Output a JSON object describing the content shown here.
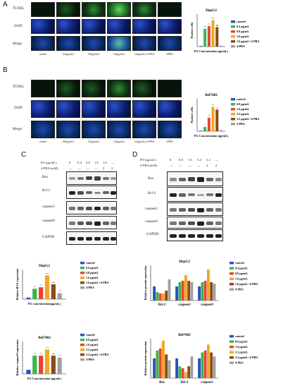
{
  "panelA": {
    "letter": "A",
    "row_labels": [
      "TUNEL",
      "DAPI",
      "Merge"
    ],
    "col_labels": [
      "control",
      "0.4(μg/mL)",
      "0.8(μg/mL)",
      "1.6(μg/mL)",
      "1.6(μg/mL)+4-PBA",
      "4-PBA"
    ]
  },
  "panelB": {
    "letter": "B",
    "row_labels": [
      "TUNEL",
      "DAPI",
      "Merge"
    ],
    "col_labels": [
      "control",
      "0.8(μg/mL)",
      "1.6(μg/mL)",
      "3.2(μg/mL)",
      "3.2(μg/mL)+4-PBA",
      "4-PBA"
    ]
  },
  "panelC": {
    "letter": "C",
    "header_po": "PO (μg/mL)",
    "header_pba": "4-PBA (mM)",
    "po_values": [
      "0",
      "0.4",
      "0.8",
      "1.6",
      "1.6",
      "—"
    ],
    "pba_values": [
      "—",
      "—",
      "—",
      "—",
      "2",
      "2"
    ],
    "blots": [
      "Bax",
      "Bcl-2",
      "caspase3",
      "caspase9",
      "GAPDH"
    ]
  },
  "panelD": {
    "letter": "D",
    "header_po": "PO (μg/mL)",
    "header_pba": "4-PBA (mM)",
    "po_values": [
      "0",
      "0.8",
      "1.6",
      "3.2",
      "3.2",
      "—"
    ],
    "pba_values": [
      "—",
      "—",
      "—",
      "—",
      "2",
      "2"
    ],
    "blots": [
      "Bax",
      "Bcl-2",
      "caspase3",
      "caspase9",
      "GAPDH"
    ]
  },
  "colors": {
    "control": "#2b4fbf",
    "c2": "#3cb54a",
    "c3": "#e8442d",
    "c4": "#f2a623",
    "c5": "#8b4a1c",
    "c6": "#a0a0a0"
  },
  "chart_data": [
    {
      "type": "bar",
      "title": "HepG2",
      "xlabel": "PG Concentration (μg/mL)",
      "ylabel": "Positive cells",
      "categories": [
        "control",
        "0.4 μg/mL",
        "0.8 μg/mL",
        "1.6 μg/mL",
        "1.6 μg/mL+4-PBA",
        "4-PBA"
      ],
      "values": [
        2,
        55,
        63,
        82,
        60,
        3
      ],
      "ylim": [
        0,
        100
      ],
      "legend": [
        "control",
        "0.4 μg/mL",
        "0.8 μg/mL",
        "1.6 μg/mL",
        "1.6 μg/mL+4-PBA",
        "4-PBA"
      ],
      "legend_position": "right",
      "annotations": [
        "**",
        "**",
        "***",
        "##",
        ""
      ]
    },
    {
      "type": "bar",
      "title": "Bel7402",
      "xlabel": "PG Concentration (μg/mL)",
      "ylabel": "Positive cells",
      "categories": [
        "control",
        "0.8 μg/mL",
        "1.6 μg/mL",
        "3.2 μg/mL",
        "3.2 μg/mL+4-PBA",
        "4-PBA"
      ],
      "values": [
        1,
        8,
        25,
        45,
        40,
        2
      ],
      "ylim": [
        0,
        60
      ],
      "legend": [
        "control",
        "0.8 μg/mL",
        "1.6 μg/mL",
        "3.2 μg/mL",
        "3.2 μg/mL+4-PBA",
        "4-PBA"
      ],
      "legend_position": "right",
      "annotations": [
        "*",
        "**",
        "**",
        "#",
        ""
      ]
    },
    {
      "type": "bar",
      "title": "HepG2",
      "xlabel": "PG concentration(μg/mL)",
      "ylabel": "Relative BAX expression",
      "categories": [
        "control",
        "0.4 μg/mL",
        "0.8 μg/mL",
        "1.6 μg/mL",
        "1.6 μg/mL+4-PBA",
        "4-PBA"
      ],
      "values": [
        1.0,
        7.0,
        8.0,
        16.0,
        10.0,
        4.0
      ],
      "ylim": [
        0,
        20
      ],
      "legend": [
        "control",
        "0.4 μg/mL",
        "0.8 μg/mL",
        "1.6 μg/mL",
        "1.6 μg/mL+4-PBA",
        "4-PBA"
      ],
      "legend_position": "right",
      "annotations": [
        "**",
        "**",
        "***",
        "##",
        "**"
      ]
    },
    {
      "type": "bar",
      "title": "HepG2",
      "xlabel": "",
      "ylabel": "Relative protein expression",
      "categories": [
        "Bcl-2",
        "caspase3",
        "caspase9"
      ],
      "series": [
        {
          "name": "control",
          "values": [
            1.0,
            1.0,
            1.0
          ]
        },
        {
          "name": "0.4 μg/mL",
          "values": [
            0.6,
            1.3,
            1.3
          ]
        },
        {
          "name": "0.8 μg/mL",
          "values": [
            0.5,
            1.4,
            1.4
          ]
        },
        {
          "name": "1.6 μg/mL",
          "values": [
            0.5,
            1.8,
            2.2
          ]
        },
        {
          "name": "1.6 μg/mL+4-PBA",
          "values": [
            0.7,
            1.4,
            1.3
          ]
        },
        {
          "name": "4-PBA",
          "values": [
            1.5,
            1.3,
            1.2
          ]
        }
      ],
      "ylim": [
        0,
        2.5
      ],
      "legend_position": "right"
    },
    {
      "type": "bar",
      "title": "Bel7402",
      "xlabel": "PG Concentration (μg/mL)",
      "ylabel": "Relative caspase9 expression",
      "categories": [
        "control",
        "0.8 μg/mL",
        "1.6 μg/mL",
        "3.2 μg/mL",
        "3.2 μg/mL+4-PBA",
        "4-PBA"
      ],
      "values": [
        1.0,
        4.5,
        4.5,
        6.0,
        4.5,
        4.0
      ],
      "ylim": [
        0,
        8
      ],
      "legend": [
        "control",
        "0.8 μg/mL",
        "1.6 μg/mL",
        "3.2 μg/mL",
        "3.2 μg/mL+4-PBA",
        "4-PBA"
      ],
      "legend_position": "right",
      "annotations": [
        "**",
        "**",
        "***",
        "##",
        "**"
      ]
    },
    {
      "type": "bar",
      "title": "Bel7402",
      "xlabel": "",
      "ylabel": "Relative protein expression",
      "categories": [
        "Bax",
        "Bcl-2",
        "caspase3"
      ],
      "series": [
        {
          "name": "control",
          "values": [
            1.0,
            1.0,
            1.0
          ]
        },
        {
          "name": "0.8 μg/mL",
          "values": [
            1.4,
            0.6,
            1.3
          ]
        },
        {
          "name": "1.6 μg/mL",
          "values": [
            1.5,
            0.5,
            1.4
          ]
        },
        {
          "name": "3.2 μg/mL",
          "values": [
            1.9,
            0.3,
            1.7
          ]
        },
        {
          "name": "3.2 μg/mL+4-PBA",
          "values": [
            1.2,
            0.6,
            1.3
          ]
        },
        {
          "name": "4-PBA",
          "values": [
            0.9,
            1.1,
            1.1
          ]
        }
      ],
      "ylim": [
        0,
        2.0
      ],
      "legend_position": "right"
    }
  ]
}
